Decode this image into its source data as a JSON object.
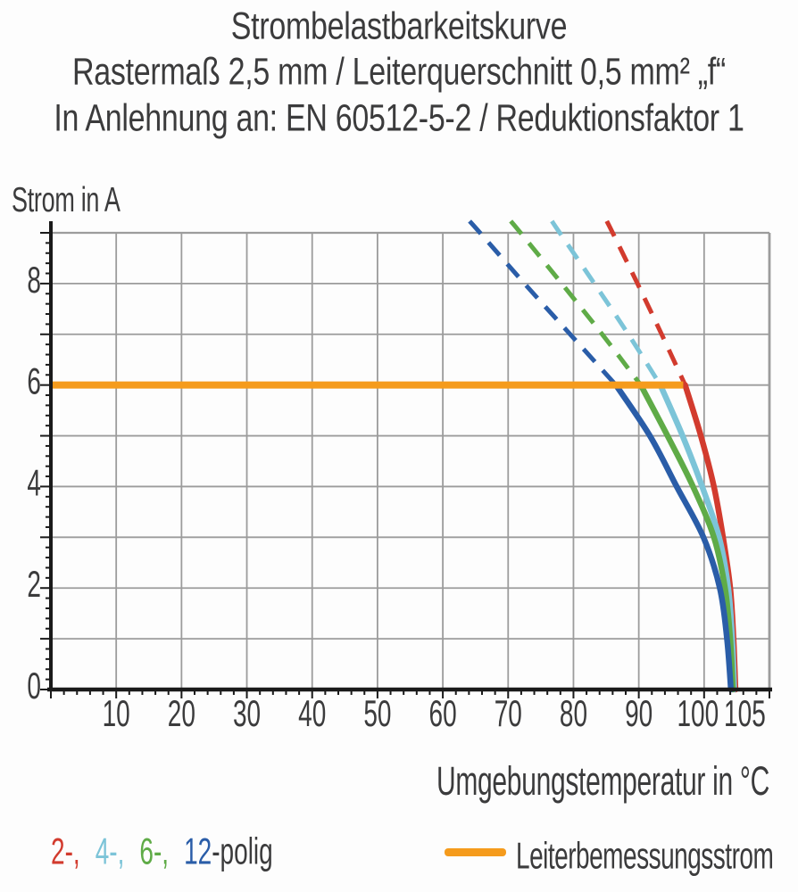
{
  "title": {
    "line1": "Strombelastbarkeitskurve",
    "line2": "Rastermaß 2,5 mm / Leiterquerschnitt 0,5 mm² „f“",
    "line3": "In Anlehnung an: EN 60512-5-2 / Reduktionsfaktor 1"
  },
  "axis_labels": {
    "y": "Strom in A",
    "x": "Umgebungstemperatur in °C"
  },
  "legend": {
    "pole_items": [
      {
        "label": "2-,",
        "color": "#D23B2E"
      },
      {
        "label": "4-,",
        "color": "#7CC4D8"
      },
      {
        "label": "6-,",
        "color": "#5FAB47"
      },
      {
        "label": "12",
        "color": "#2A5DA8"
      }
    ],
    "pole_suffix": "-polig",
    "rated_line_label": "Leiterbemessungsstrom"
  },
  "colors": {
    "red": "#D23B2E",
    "cyan": "#7CC4D8",
    "green": "#5FAB47",
    "blue": "#2A5DA8",
    "orange": "#F59B1C",
    "text": "#3B3B3C",
    "grid": "#9C9C9C",
    "axis": "#1A1A1A"
  },
  "chart_data": {
    "type": "line",
    "title": "Strombelastbarkeitskurve",
    "subtitle": "Rastermaß 2,5 mm / Leiterquerschnitt 0,5 mm² „f“",
    "note": "In Anlehnung an: EN 60512-5-2 / Reduktionsfaktor 1",
    "xlabel": "Umgebungstemperatur in °C",
    "ylabel": "Strom in A",
    "xlim": [
      0,
      110
    ],
    "ylim": [
      0,
      9
    ],
    "x_grid_step": 10,
    "y_grid_step": 1,
    "x_minor_tick_step": 2,
    "y_minor_tick_step": 0.2,
    "x_ticks_labeled": [
      10,
      20,
      30,
      40,
      50,
      60,
      70,
      80,
      90,
      100,
      105
    ],
    "x_tick_label_dx": {
      "100": -7,
      "105": 9
    },
    "y_ticks_labeled": [
      0,
      2,
      4,
      6,
      8
    ],
    "rated_current_line": {
      "label": "Leiterbemessungsstrom",
      "value": 6,
      "x_start": 0,
      "x_end": 96.8,
      "color": "#F59B1C"
    },
    "series": [
      {
        "name": "2-polig",
        "color": "#D23B2E",
        "dashed_points": [
          [
            85.1,
            9.23
          ],
          [
            86.0,
            9
          ],
          [
            89.8,
            8
          ],
          [
            93.5,
            7
          ],
          [
            97.1,
            6
          ]
        ],
        "solid_points": [
          [
            97.1,
            6
          ],
          [
            99.5,
            5
          ],
          [
            101.5,
            4
          ],
          [
            102.9,
            3
          ],
          [
            104.0,
            2
          ],
          [
            104.5,
            1
          ],
          [
            104.8,
            0
          ]
        ]
      },
      {
        "name": "4-polig",
        "color": "#7CC4D8",
        "dashed_points": [
          [
            76.7,
            9.23
          ],
          [
            77.9,
            9
          ],
          [
            83.2,
            8
          ],
          [
            88.4,
            7
          ],
          [
            93.3,
            6
          ]
        ],
        "solid_points": [
          [
            93.3,
            6
          ],
          [
            96.7,
            5
          ],
          [
            99.7,
            4
          ],
          [
            102.3,
            3
          ],
          [
            103.7,
            2
          ],
          [
            104.3,
            1
          ],
          [
            104.6,
            0
          ]
        ]
      },
      {
        "name": "6-polig",
        "color": "#5FAB47",
        "dashed_points": [
          [
            70.4,
            9.23
          ],
          [
            71.9,
            9
          ],
          [
            78.2,
            8
          ],
          [
            84.4,
            7
          ],
          [
            90.3,
            6
          ]
        ],
        "solid_points": [
          [
            90.3,
            6
          ],
          [
            94.4,
            5
          ],
          [
            98.3,
            4
          ],
          [
            101.5,
            3
          ],
          [
            103.2,
            2
          ],
          [
            104.0,
            1
          ],
          [
            104.4,
            0
          ]
        ]
      },
      {
        "name": "12-polig",
        "color": "#2A5DA8",
        "dashed_points": [
          [
            64.1,
            9.23
          ],
          [
            65.7,
            9
          ],
          [
            72.5,
            8
          ],
          [
            79.5,
            7
          ],
          [
            86.5,
            6
          ]
        ],
        "solid_points": [
          [
            86.5,
            6
          ],
          [
            91.7,
            5
          ],
          [
            95.8,
            4
          ],
          [
            99.9,
            3
          ],
          [
            102.4,
            2
          ],
          [
            103.5,
            1
          ],
          [
            104.1,
            0
          ]
        ]
      }
    ]
  }
}
